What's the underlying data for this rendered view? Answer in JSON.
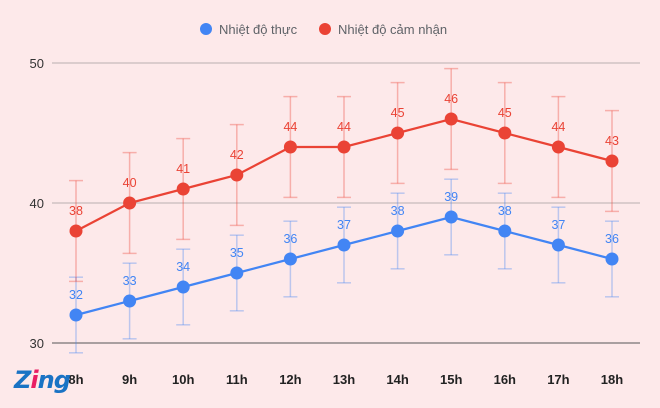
{
  "chart_data": {
    "type": "line",
    "categories": [
      "8h",
      "9h",
      "10h",
      "11h",
      "12h",
      "13h",
      "14h",
      "15h",
      "16h",
      "17h",
      "18h"
    ],
    "series": [
      {
        "name": "Nhiệt độ thực",
        "color": "#4285f4",
        "values": [
          32,
          33,
          34,
          35,
          36,
          37,
          38,
          39,
          38,
          37,
          36
        ],
        "error_low": [
          2.7,
          2.7,
          2.7,
          2.7,
          2.7,
          2.7,
          2.7,
          2.7,
          2.7,
          2.7,
          2.7
        ],
        "error_high": [
          2.7,
          2.7,
          2.7,
          2.7,
          2.7,
          2.7,
          2.7,
          2.7,
          2.7,
          2.7,
          2.7
        ]
      },
      {
        "name": "Nhiệt độ cảm nhận",
        "color": "#ea4335",
        "values": [
          38,
          40,
          41,
          42,
          44,
          44,
          45,
          46,
          45,
          44,
          43
        ],
        "error_low": [
          3.6,
          3.6,
          3.6,
          3.6,
          3.6,
          3.6,
          3.6,
          3.6,
          3.6,
          3.6,
          3.6
        ],
        "error_high": [
          3.6,
          3.6,
          3.6,
          3.6,
          3.6,
          3.6,
          3.6,
          3.6,
          3.6,
          3.6,
          3.6
        ]
      }
    ],
    "y_ticks": [
      30,
      40,
      50
    ],
    "ylim": [
      30,
      50
    ],
    "legend_position": "top-center",
    "grid": true
  },
  "logo": {
    "text": "Zing",
    "color_main": "#1a73c4",
    "color_dot": "#e91e63"
  }
}
